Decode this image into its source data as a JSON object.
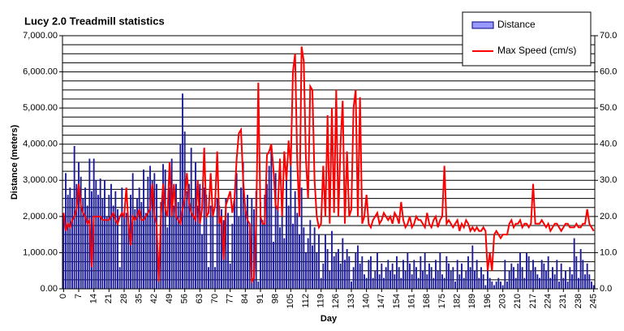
{
  "chart_data": {
    "type": "bar-line",
    "title": "Lucy 2.0 Treadmill statistics",
    "ylabel": "Distance (meters)",
    "xlabel": "Day",
    "legend": "top-right",
    "x": [
      0,
      1,
      2,
      3,
      4,
      5,
      6,
      7,
      8,
      9,
      10,
      11,
      12,
      13,
      14,
      15,
      16,
      17,
      18,
      19,
      20,
      21,
      22,
      23,
      24,
      25,
      26,
      27,
      28,
      29,
      30,
      31,
      32,
      33,
      34,
      35,
      36,
      37,
      38,
      39,
      40,
      41,
      42,
      43,
      44,
      45,
      46,
      47,
      48,
      49,
      50,
      51,
      52,
      53,
      54,
      55,
      56,
      57,
      58,
      59,
      60,
      61,
      62,
      63,
      64,
      65,
      66,
      67,
      68,
      69,
      70,
      71,
      72,
      73,
      74,
      75,
      76,
      77,
      78,
      79,
      80,
      81,
      82,
      83,
      84,
      85,
      86,
      87,
      88,
      89,
      90,
      91,
      92,
      93,
      94,
      95,
      96,
      97,
      98,
      99,
      100,
      101,
      102,
      103,
      104,
      105,
      106,
      107,
      108,
      109,
      110,
      111,
      112,
      113,
      114,
      115,
      116,
      117,
      118,
      119,
      120,
      121,
      122,
      123,
      124,
      125,
      126,
      127,
      128,
      129,
      130,
      131,
      132,
      133,
      134,
      135,
      136,
      137,
      138,
      139,
      140,
      141,
      142,
      143,
      144,
      145,
      146,
      147,
      148,
      149,
      150,
      151,
      152,
      153,
      154,
      155,
      156,
      157,
      158,
      159,
      160,
      161,
      162,
      163,
      164,
      165,
      166,
      167,
      168,
      169,
      170,
      171,
      172,
      173,
      174,
      175,
      176,
      177,
      178,
      179,
      180,
      181,
      182,
      183,
      184,
      185,
      186,
      187,
      188,
      189,
      190,
      191,
      192,
      193,
      194,
      195,
      196,
      197,
      198,
      199,
      200,
      201,
      202,
      203,
      204,
      205,
      206,
      207,
      208,
      209,
      210,
      211,
      212,
      213,
      214,
      215,
      216,
      217,
      218,
      219,
      220,
      221,
      222,
      223,
      224,
      225,
      226,
      227,
      228,
      229,
      230,
      231,
      232,
      233,
      234,
      235,
      236,
      237,
      238,
      239,
      240,
      241,
      242,
      243,
      244,
      245
    ],
    "xlim": [
      -0.5,
      245.5
    ],
    "xticks": [
      0,
      7,
      14,
      21,
      28,
      35,
      42,
      49,
      56,
      63,
      70,
      77,
      84,
      91,
      98,
      105,
      112,
      119,
      126,
      133,
      140,
      147,
      154,
      161,
      168,
      175,
      182,
      189,
      196,
      203,
      210,
      217,
      224,
      231,
      238,
      245
    ],
    "ylim": [
      0,
      7000
    ],
    "yticks": [
      {
        "value": 0,
        "label": "0.00"
      },
      {
        "value": 1000,
        "label": "1,000.00"
      },
      {
        "value": 2000,
        "label": "2,000.00"
      },
      {
        "value": 3000,
        "label": "3,000.00"
      },
      {
        "value": 4000,
        "label": "4,000.00"
      },
      {
        "value": 5000,
        "label": "5,000.00"
      },
      {
        "value": 6000,
        "label": "6,000.00"
      },
      {
        "value": 7000,
        "label": "7,000.00"
      }
    ],
    "grid_lines": [
      0,
      250,
      500,
      750,
      1000,
      1250,
      1500,
      1750,
      2000,
      2250,
      2500,
      2750,
      3000,
      3250,
      3500,
      3750,
      4000,
      4250,
      4500,
      4750,
      5000,
      5250,
      5500,
      5750,
      6000,
      6250,
      6500,
      6750,
      7000
    ],
    "y2lim": [
      0,
      70
    ],
    "y2ticks": [
      {
        "value": 0,
        "label": "0.0"
      },
      {
        "value": 10,
        "label": "10.0"
      },
      {
        "value": 20,
        "label": "20.0"
      },
      {
        "value": 30,
        "label": "30.0"
      },
      {
        "value": 40,
        "label": "40.0"
      },
      {
        "value": 50,
        "label": "50.0"
      },
      {
        "value": 60,
        "label": "60.0"
      },
      {
        "value": 70,
        "label": "70.0"
      }
    ],
    "series": [
      {
        "name": "Distance",
        "type": "bar",
        "color": "#1c1c9a",
        "values": [
          2100,
          3200,
          2600,
          2800,
          2500,
          3950,
          2900,
          3500,
          3100,
          2500,
          2800,
          2300,
          3600,
          2700,
          3600,
          3000,
          2600,
          3050,
          2500,
          3000,
          2000,
          2600,
          2900,
          2300,
          2700,
          2200,
          600,
          2800,
          2000,
          2100,
          1800,
          2600,
          3200,
          2200,
          2500,
          2800,
          2400,
          3300,
          2100,
          3100,
          3400,
          3000,
          3200,
          2900,
          500,
          2400,
          3450,
          3300,
          1700,
          2800,
          3600,
          2300,
          2900,
          2400,
          4000,
          5400,
          4350,
          2700,
          2900,
          3900,
          2500,
          3500,
          2300,
          2900,
          1500,
          2800,
          2600,
          600,
          2300,
          2200,
          600,
          2500,
          2300,
          2200,
          1900,
          2500,
          2100,
          700,
          1800,
          2500,
          3200,
          2000,
          2800,
          3500,
          2300,
          2600,
          1600,
          2500,
          2200,
          2700,
          200,
          2400,
          1900,
          2600,
          2900,
          3400,
          3900,
          1300,
          3200,
          2300,
          1700,
          2500,
          1400,
          3000,
          2300,
          3400,
          1800,
          2700,
          2100,
          1500,
          2800,
          1700,
          1000,
          1400,
          1900,
          1200,
          1700,
          1000,
          1500,
          300,
          700,
          1500,
          1100,
          500,
          1600,
          900,
          1000,
          1100,
          700,
          1400,
          800,
          1100,
          900,
          200,
          600,
          1000,
          1200,
          700,
          900,
          400,
          300,
          800,
          900,
          300,
          500,
          1000,
          400,
          700,
          300,
          600,
          800,
          500,
          700,
          400,
          900,
          600,
          300,
          800,
          500,
          1000,
          700,
          400,
          800,
          600,
          300,
          900,
          500,
          1000,
          400,
          700,
          600,
          300,
          800,
          500,
          1000,
          400,
          300,
          900,
          700,
          500,
          600,
          200,
          800,
          400,
          700,
          300,
          500,
          900,
          600,
          1200,
          500,
          800,
          300,
          600,
          400,
          100,
          700,
          300,
          200,
          100,
          200,
          300,
          200,
          100,
          800,
          200,
          500,
          700,
          600,
          300,
          700,
          1000,
          600,
          300,
          1000,
          900,
          500,
          800,
          600,
          400,
          300,
          800,
          700,
          500,
          900,
          300,
          600,
          400,
          800,
          200,
          700,
          300,
          500,
          200,
          600,
          400,
          1400,
          900,
          300,
          1100,
          800,
          400,
          700,
          400,
          200,
          100
        ]
      },
      {
        "name": "Max Speed (cm/s)",
        "type": "line",
        "axis": "y2",
        "color": "#ff0000",
        "values": [
          21,
          16,
          18,
          17,
          19,
          20,
          22,
          29,
          23,
          21,
          20,
          18,
          19,
          6,
          20,
          20,
          20,
          20,
          19,
          19,
          19,
          19,
          20,
          21,
          19,
          18,
          20,
          21,
          20,
          28,
          18,
          12,
          20,
          19,
          20,
          22,
          19,
          19,
          20,
          21,
          22,
          29,
          20,
          18,
          2,
          20,
          29,
          22,
          20,
          35,
          20,
          29,
          20,
          19,
          18,
          22,
          25,
          32,
          24,
          21,
          20,
          19,
          30,
          18,
          22,
          39,
          20,
          21,
          32,
          20,
          23,
          38,
          18,
          20,
          8,
          23,
          25,
          27,
          21,
          25,
          36,
          43,
          44,
          30,
          22,
          19,
          18,
          2,
          3,
          18,
          57,
          20,
          18,
          18,
          37,
          38,
          40,
          33,
          23,
          22,
          36,
          20,
          38,
          30,
          41,
          34,
          60,
          65,
          35,
          20,
          67,
          63,
          36,
          25,
          56,
          55,
          30,
          20,
          17,
          18,
          34,
          20,
          48,
          18,
          50,
          21,
          55,
          20,
          40,
          52,
          18,
          38,
          20,
          22,
          50,
          55,
          20,
          53,
          18,
          20,
          26,
          18,
          17,
          19,
          20,
          21,
          18,
          19,
          21,
          20,
          19,
          20,
          18,
          21,
          20,
          18,
          24,
          19,
          17,
          18,
          20,
          17,
          18,
          20,
          19,
          19,
          18,
          17,
          21,
          18,
          17,
          19,
          20,
          17,
          19,
          20,
          34,
          18,
          19,
          18,
          17,
          18,
          19,
          16,
          18,
          17,
          19,
          18,
          16,
          17,
          16,
          17,
          16,
          16,
          17,
          16,
          5,
          10,
          5,
          15,
          16,
          15,
          14,
          15,
          15,
          15,
          18,
          19,
          17,
          18,
          18,
          19,
          17,
          18,
          18,
          17,
          18,
          29,
          18,
          18,
          18,
          19,
          18,
          17,
          18,
          16,
          17,
          18,
          18,
          17,
          16,
          17,
          18,
          18,
          17,
          17,
          17,
          18,
          17,
          17,
          18,
          18,
          22,
          18,
          17,
          16
        ]
      }
    ]
  }
}
